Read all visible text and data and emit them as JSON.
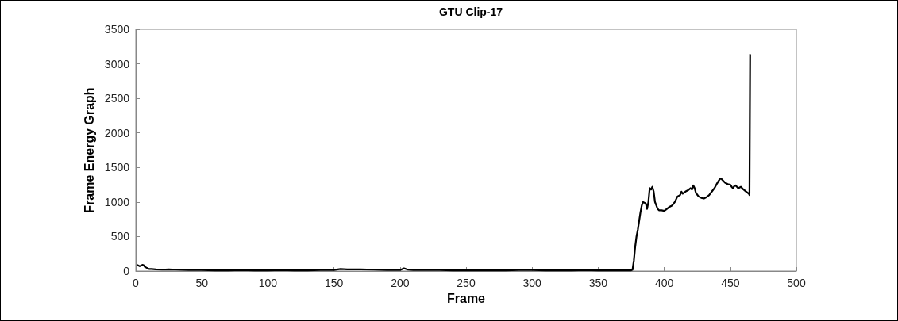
{
  "chart_data": {
    "type": "line",
    "title": "GTU Clip-17",
    "xlabel": "Frame",
    "ylabel": "Frame Energy Graph",
    "xlim": [
      0,
      500
    ],
    "xticks": [
      0,
      50,
      100,
      150,
      200,
      250,
      300,
      350,
      400,
      450,
      500
    ],
    "ylim": [
      0,
      3500
    ],
    "yticks": [
      0,
      500,
      1000,
      1500,
      2000,
      2500,
      3000,
      3500
    ],
    "grid": false,
    "marker": "none",
    "line_style": "solid",
    "series": [
      {
        "color": "#000000",
        "x": [
          1,
          2,
          3,
          4,
          5,
          6,
          7,
          8,
          9,
          10,
          12,
          15,
          20,
          25,
          30,
          40,
          50,
          60,
          70,
          80,
          90,
          100,
          110,
          120,
          130,
          140,
          150,
          155,
          160,
          170,
          180,
          190,
          200,
          203,
          206,
          210,
          220,
          230,
          240,
          250,
          260,
          270,
          280,
          290,
          300,
          310,
          320,
          330,
          340,
          350,
          360,
          370,
          375,
          376,
          377,
          378,
          379,
          380,
          382,
          383,
          384,
          386,
          387,
          388,
          389,
          390,
          391,
          392,
          393,
          394,
          395,
          396,
          398,
          400,
          402,
          404,
          406,
          408,
          410,
          412,
          413,
          414,
          416,
          418,
          420,
          421,
          422,
          423,
          424,
          426,
          428,
          430,
          432,
          434,
          436,
          438,
          440,
          441,
          442,
          443,
          444,
          446,
          448,
          450,
          451,
          452,
          453,
          454,
          455,
          456,
          458,
          460,
          462,
          464,
          464.5,
          465
        ],
        "values": [
          90,
          80,
          70,
          80,
          90,
          85,
          60,
          50,
          40,
          30,
          30,
          25,
          20,
          25,
          20,
          15,
          15,
          10,
          10,
          15,
          10,
          10,
          15,
          10,
          10,
          15,
          15,
          30,
          25,
          25,
          20,
          15,
          15,
          40,
          20,
          15,
          15,
          15,
          10,
          10,
          10,
          10,
          10,
          15,
          15,
          10,
          10,
          10,
          15,
          10,
          10,
          10,
          10,
          20,
          150,
          350,
          500,
          600,
          850,
          950,
          1000,
          980,
          900,
          1000,
          1200,
          1180,
          1220,
          1150,
          1000,
          950,
          900,
          880,
          880,
          870,
          900,
          930,
          950,
          1000,
          1080,
          1100,
          1150,
          1120,
          1150,
          1170,
          1200,
          1180,
          1240,
          1200,
          1130,
          1080,
          1060,
          1050,
          1070,
          1100,
          1150,
          1200,
          1270,
          1300,
          1330,
          1340,
          1320,
          1280,
          1260,
          1250,
          1220,
          1200,
          1230,
          1240,
          1220,
          1200,
          1220,
          1180,
          1150,
          1120,
          1100,
          3140
        ]
      }
    ]
  }
}
